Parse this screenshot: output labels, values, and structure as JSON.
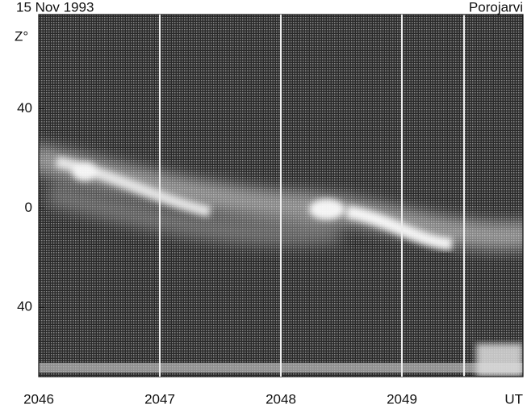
{
  "chart_data": {
    "type": "keogram",
    "title": "15 Nov 1993",
    "subtitle": "Porojarvi",
    "y_label": "Z°",
    "x_label": "UT",
    "xlim": [
      2046,
      2050
    ],
    "xticks": [
      2046,
      2047,
      2048,
      2049
    ],
    "ylim": [
      -68,
      78
    ],
    "yticks": [
      {
        "value": 40,
        "label": "40"
      },
      0,
      {
        "value": -40,
        "label": "40"
      }
    ]
  }
}
